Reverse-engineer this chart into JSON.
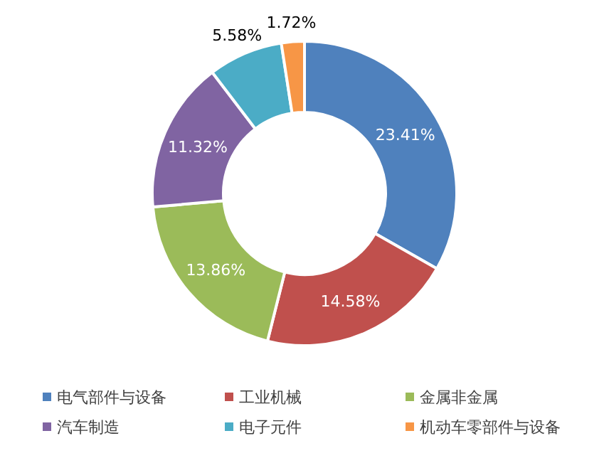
{
  "chart_data": {
    "type": "donut",
    "categories": [
      "电气部件与设备",
      "工业机械",
      "金属非金属",
      "汽车制造",
      "电子元件",
      "机动车零部件与设备"
    ],
    "values": [
      23.41,
      14.58,
      13.86,
      11.32,
      5.58,
      1.72
    ],
    "value_labels": [
      "23.41%",
      "14.58%",
      "13.86%",
      "11.32%",
      "5.58%",
      "1.72%"
    ],
    "colors": [
      "#4f81bd",
      "#c0504d",
      "#9bbb59",
      "#8064a2",
      "#4bacc6",
      "#f79646"
    ],
    "legend": "bottom"
  }
}
